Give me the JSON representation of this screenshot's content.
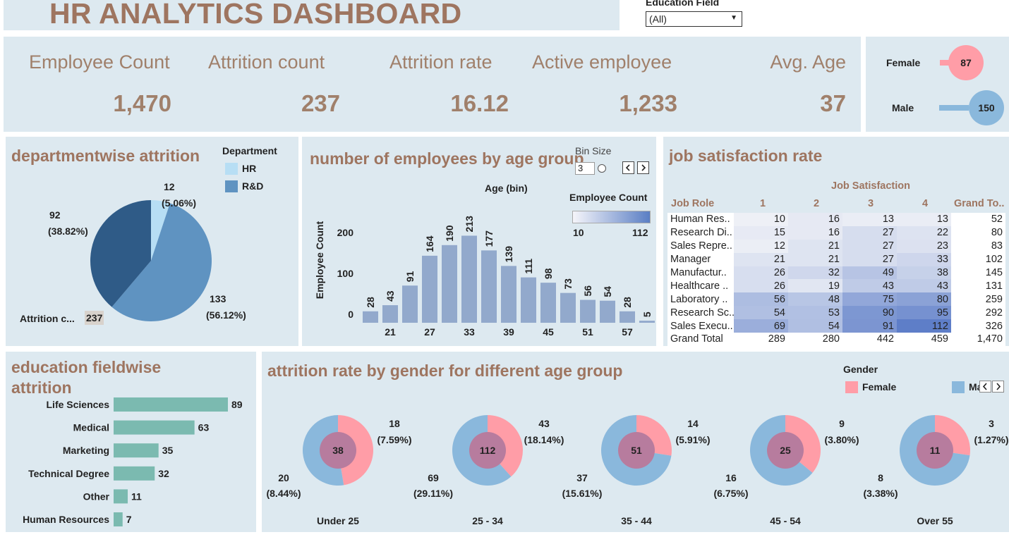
{
  "header": {
    "title": "HR ANALYTICS DASHBOARD"
  },
  "filter": {
    "label": "Education Field",
    "value": "(All)",
    "arrow": "▼"
  },
  "kpis": [
    {
      "label": "Employee Count",
      "value": "1,470"
    },
    {
      "label": "Attrition count",
      "value": "237"
    },
    {
      "label": "Attrition rate",
      "value": "16.12"
    },
    {
      "label": "Active employee",
      "value": "1,233"
    },
    {
      "label": "Avg. Age",
      "value": "37"
    }
  ],
  "gender_counts": {
    "female_label": "Female",
    "female_value": "87",
    "male_label": "Male",
    "male_value": "150",
    "female_color": "#ff9da7",
    "male_color": "#8ab8dc"
  },
  "department": {
    "title": "departmentwise attrition",
    "legend_title": "Department",
    "legend": [
      {
        "label": "HR",
        "color": "#b7def4"
      },
      {
        "label": "R&D",
        "color": "#5f93c1"
      }
    ],
    "total_label": "Attrition c...",
    "total_value": "237",
    "labels": {
      "a_v": "12",
      "a_p": "(5.06%)",
      "b_v": "133",
      "b_p": "(56.12%)",
      "c_v": "92",
      "c_p": "(38.82%)"
    }
  },
  "age_group": {
    "title": "number of employees by age group",
    "bin_label": "Bin Size",
    "bin_value": "3",
    "axis_title": "Age (bin)",
    "y_title": "Employee Count",
    "legend_title": "Employee Count",
    "legend_min": "10",
    "legend_max": "112"
  },
  "job_satisfaction": {
    "title": "job satisfaction rate",
    "col_header": "Job Satisfaction",
    "row_header": "Job Role",
    "cols": [
      "1",
      "2",
      "3",
      "4"
    ],
    "gt_header": "Grand To..",
    "rows": [
      {
        "role": "Human Res..",
        "v": [
          10,
          16,
          13,
          13
        ],
        "gt": "52"
      },
      {
        "role": "Research Di..",
        "v": [
          15,
          16,
          27,
          22
        ],
        "gt": "80"
      },
      {
        "role": "Sales Repre..",
        "v": [
          12,
          21,
          27,
          23
        ],
        "gt": "83"
      },
      {
        "role": "Manager",
        "v": [
          21,
          21,
          27,
          33
        ],
        "gt": "102"
      },
      {
        "role": "Manufactur..",
        "v": [
          26,
          32,
          49,
          38
        ],
        "gt": "145"
      },
      {
        "role": "Healthcare ..",
        "v": [
          26,
          19,
          43,
          43
        ],
        "gt": "131"
      },
      {
        "role": "Laboratory ..",
        "v": [
          56,
          48,
          75,
          80
        ],
        "gt": "259"
      },
      {
        "role": "Research Sc..",
        "v": [
          54,
          53,
          90,
          95
        ],
        "gt": "292"
      },
      {
        "role": "Sales Execu..",
        "v": [
          69,
          54,
          91,
          112
        ],
        "gt": "326"
      }
    ],
    "total": {
      "label": "Grand Total",
      "v": [
        "289",
        "280",
        "442",
        "459"
      ],
      "gt": "1,470"
    }
  },
  "education": {
    "title": "education fieldwise",
    "title_cut": "attrition",
    "bar_color": "#7bbab0"
  },
  "gender_age": {
    "title": "attrition rate by gender for different age group",
    "legend_title": "Gender",
    "legend": [
      {
        "label": "Female",
        "color": "#ff9da7"
      },
      {
        "label": "Ma",
        "color": "#8ab8dc"
      }
    ],
    "nav_left": "‹",
    "nav_right": "›",
    "groups": [
      {
        "label": "Under 25",
        "total": "38",
        "female_v": "18",
        "female_p": "(7.59%)",
        "male_v": "20",
        "male_p": "(8.44%)"
      },
      {
        "label": "25 - 34",
        "total": "112",
        "female_v": "43",
        "female_p": "(18.14%)",
        "male_v": "69",
        "male_p": "(29.11%)"
      },
      {
        "label": "35 - 44",
        "total": "51",
        "female_v": "14",
        "female_p": "(5.91%)",
        "male_v": "37",
        "male_p": "(15.61%)"
      },
      {
        "label": "45 - 54",
        "total": "25",
        "female_v": "9",
        "female_p": "(3.80%)",
        "male_v": "16",
        "male_p": "(6.75%)"
      },
      {
        "label": "Over 55",
        "total": "11",
        "female_v": "3",
        "female_p": "(1.27%)",
        "male_v": "8",
        "male_p": "(3.38%)"
      }
    ]
  },
  "chart_data": [
    {
      "type": "pie",
      "title": "departmentwise attrition",
      "legend_title": "Department",
      "slices": [
        {
          "label": "HR",
          "value": 12,
          "percent": "5.06%"
        },
        {
          "label": "R&D",
          "value": 133,
          "percent": "56.12%"
        },
        {
          "label": "",
          "value": 92,
          "percent": "38.82%"
        }
      ]
    },
    {
      "type": "bar",
      "title": "number of employees by age group",
      "xlabel": "Age (bin)",
      "ylabel": "Employee Count",
      "x": [
        18,
        21,
        24,
        27,
        30,
        33,
        36,
        39,
        42,
        45,
        48,
        51,
        54,
        57,
        60
      ],
      "values": [
        28,
        43,
        91,
        164,
        190,
        213,
        177,
        139,
        111,
        98,
        73,
        56,
        54,
        28,
        5
      ],
      "xticks": [
        21,
        27,
        33,
        39,
        45,
        51,
        57
      ],
      "yticks": [
        0,
        100,
        200
      ],
      "ylim": [
        0,
        240
      ]
    },
    {
      "type": "bar",
      "title": "education fieldwise",
      "orientation": "horizontal",
      "categories": [
        "Life Sciences",
        "Medical",
        "Marketing",
        "Technical Degree",
        "Other",
        "Human Resources"
      ],
      "values": [
        89,
        63,
        35,
        32,
        11,
        7
      ]
    },
    {
      "type": "pie",
      "title": "attrition rate by gender for different age group",
      "categories": [
        "Under 25",
        "25 - 34",
        "35 - 44",
        "45 - 54",
        "Over 55"
      ],
      "series": [
        {
          "name": "Female",
          "values": [
            18,
            43,
            14,
            9,
            3
          ]
        },
        {
          "name": "Ma",
          "values": [
            20,
            69,
            37,
            16,
            8
          ]
        }
      ]
    },
    {
      "type": "heatmap",
      "title": "job satisfaction rate",
      "x": [
        "1",
        "2",
        "3",
        "4"
      ],
      "y": [
        "Human Res..",
        "Research Di..",
        "Sales Repre..",
        "Manager",
        "Manufactur..",
        "Healthcare ..",
        "Laboratory ..",
        "Research Sc..",
        "Sales Execu.."
      ],
      "color_range": [
        10,
        112
      ]
    },
    {
      "type": "bar",
      "title": "",
      "orientation": "horizontal",
      "categories": [
        "Female",
        "Male"
      ],
      "values": [
        87,
        150
      ]
    }
  ]
}
